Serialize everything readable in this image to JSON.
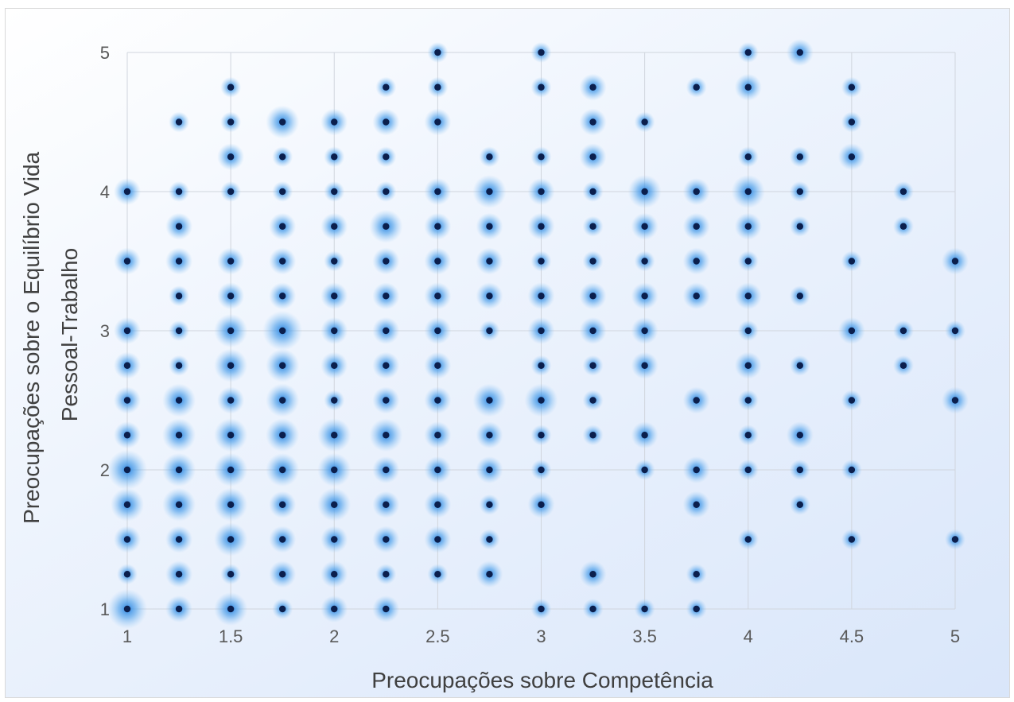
{
  "chart_data": {
    "type": "scatter",
    "title": "",
    "xlabel": "Preocupações sobre Competência",
    "ylabel": [
      "Preocupações sobre o Equilíbrio Vida",
      "Pessoal-Trabalho"
    ],
    "xlim": [
      1,
      5
    ],
    "ylim": [
      1,
      5
    ],
    "xticks": [
      "1",
      "1.5",
      "2",
      "2.5",
      "3",
      "3.5",
      "4",
      "4.5",
      "5"
    ],
    "yticks": [
      "1",
      "2",
      "3",
      "4",
      "5"
    ],
    "grid": true,
    "legend": "none",
    "marker_color": "#0b1f4d",
    "halo_color": "#4a9eea",
    "points": [
      [
        1,
        4,
        2
      ],
      [
        1,
        3.5,
        2
      ],
      [
        1,
        3,
        2
      ],
      [
        1,
        2.75,
        2
      ],
      [
        1,
        2.5,
        2
      ],
      [
        1,
        2.25,
        2
      ],
      [
        1,
        2,
        4
      ],
      [
        1,
        1.75,
        3
      ],
      [
        1,
        1.5,
        2
      ],
      [
        1,
        1.25,
        1
      ],
      [
        1,
        1,
        4
      ],
      [
        1.25,
        4.5,
        1
      ],
      [
        1.25,
        4,
        1
      ],
      [
        1.25,
        3.75,
        2
      ],
      [
        1.25,
        3.5,
        2
      ],
      [
        1.25,
        3.25,
        1
      ],
      [
        1.25,
        3,
        1
      ],
      [
        1.25,
        2.75,
        1
      ],
      [
        1.25,
        2.5,
        3
      ],
      [
        1.25,
        2.25,
        3
      ],
      [
        1.25,
        2,
        3
      ],
      [
        1.25,
        1.75,
        3
      ],
      [
        1.25,
        1.5,
        2
      ],
      [
        1.25,
        1.25,
        2
      ],
      [
        1.25,
        1,
        2
      ],
      [
        1.5,
        4.75,
        1
      ],
      [
        1.5,
        4.5,
        1
      ],
      [
        1.5,
        4.25,
        2
      ],
      [
        1.5,
        4,
        1
      ],
      [
        1.5,
        3.5,
        2
      ],
      [
        1.5,
        3.25,
        2
      ],
      [
        1.5,
        3,
        3
      ],
      [
        1.5,
        2.75,
        3
      ],
      [
        1.5,
        2.5,
        2
      ],
      [
        1.5,
        2.25,
        3
      ],
      [
        1.5,
        2,
        3
      ],
      [
        1.5,
        1.75,
        3
      ],
      [
        1.5,
        1.5,
        3
      ],
      [
        1.5,
        1.25,
        1
      ],
      [
        1.5,
        1,
        3
      ],
      [
        1.75,
        4.5,
        3
      ],
      [
        1.75,
        4.25,
        1
      ],
      [
        1.75,
        4,
        1
      ],
      [
        1.75,
        3.75,
        2
      ],
      [
        1.75,
        3.5,
        2
      ],
      [
        1.75,
        3.25,
        2
      ],
      [
        1.75,
        3,
        4
      ],
      [
        1.75,
        2.75,
        3
      ],
      [
        1.75,
        2.5,
        3
      ],
      [
        1.75,
        2.25,
        3
      ],
      [
        1.75,
        2,
        3
      ],
      [
        1.75,
        1.75,
        2
      ],
      [
        1.75,
        1.5,
        2
      ],
      [
        1.75,
        1.25,
        2
      ],
      [
        1.75,
        1,
        1
      ],
      [
        2,
        4.5,
        2
      ],
      [
        2,
        4.25,
        1
      ],
      [
        2,
        4,
        1
      ],
      [
        2,
        3.75,
        2
      ],
      [
        2,
        3.5,
        1
      ],
      [
        2,
        3.25,
        2
      ],
      [
        2,
        3,
        2
      ],
      [
        2,
        2.75,
        2
      ],
      [
        2,
        2.5,
        1
      ],
      [
        2,
        2.25,
        3
      ],
      [
        2,
        2,
        3
      ],
      [
        2,
        1.75,
        3
      ],
      [
        2,
        1.5,
        2
      ],
      [
        2,
        1.25,
        2
      ],
      [
        2,
        1,
        2
      ],
      [
        2.25,
        4.75,
        1
      ],
      [
        2.25,
        4.5,
        2
      ],
      [
        2.25,
        4.25,
        1
      ],
      [
        2.25,
        4,
        1
      ],
      [
        2.25,
        3.75,
        3
      ],
      [
        2.25,
        3.5,
        2
      ],
      [
        2.25,
        3.25,
        2
      ],
      [
        2.25,
        3,
        2
      ],
      [
        2.25,
        2.75,
        2
      ],
      [
        2.25,
        2.5,
        2
      ],
      [
        2.25,
        2.25,
        3
      ],
      [
        2.25,
        2,
        2
      ],
      [
        2.25,
        1.75,
        2
      ],
      [
        2.25,
        1.5,
        2
      ],
      [
        2.25,
        1.25,
        1
      ],
      [
        2.25,
        1,
        2
      ],
      [
        2.5,
        5,
        1
      ],
      [
        2.5,
        4.75,
        1
      ],
      [
        2.5,
        4.5,
        2
      ],
      [
        2.5,
        4,
        2
      ],
      [
        2.5,
        3.75,
        2
      ],
      [
        2.5,
        3.5,
        2
      ],
      [
        2.5,
        3.25,
        2
      ],
      [
        2.5,
        3,
        2
      ],
      [
        2.5,
        2.75,
        2
      ],
      [
        2.5,
        2.5,
        2
      ],
      [
        2.5,
        2.25,
        2
      ],
      [
        2.5,
        2,
        2
      ],
      [
        2.5,
        1.75,
        2
      ],
      [
        2.5,
        1.5,
        2
      ],
      [
        2.5,
        1.25,
        1
      ],
      [
        2.75,
        4.25,
        1
      ],
      [
        2.75,
        4,
        3
      ],
      [
        2.75,
        3.75,
        2
      ],
      [
        2.75,
        3.5,
        2
      ],
      [
        2.75,
        3.25,
        2
      ],
      [
        2.75,
        3,
        1
      ],
      [
        2.75,
        2.5,
        3
      ],
      [
        2.75,
        2.25,
        2
      ],
      [
        2.75,
        2,
        2
      ],
      [
        2.75,
        1.75,
        1
      ],
      [
        2.75,
        1.5,
        1
      ],
      [
        2.75,
        1.25,
        2
      ],
      [
        3,
        5,
        1
      ],
      [
        3,
        4.75,
        1
      ],
      [
        3,
        4.25,
        1
      ],
      [
        3,
        4,
        2
      ],
      [
        3,
        3.75,
        2
      ],
      [
        3,
        3.5,
        1
      ],
      [
        3,
        3.25,
        2
      ],
      [
        3,
        3,
        2
      ],
      [
        3,
        2.75,
        1
      ],
      [
        3,
        2.5,
        3
      ],
      [
        3,
        2.25,
        1
      ],
      [
        3,
        2,
        1
      ],
      [
        3,
        1.75,
        2
      ],
      [
        3,
        1,
        1
      ],
      [
        3.25,
        4.75,
        2
      ],
      [
        3.25,
        4.5,
        2
      ],
      [
        3.25,
        4.25,
        2
      ],
      [
        3.25,
        4,
        1
      ],
      [
        3.25,
        3.75,
        1
      ],
      [
        3.25,
        3.5,
        1
      ],
      [
        3.25,
        3.25,
        2
      ],
      [
        3.25,
        3,
        2
      ],
      [
        3.25,
        2.75,
        1
      ],
      [
        3.25,
        2.5,
        1
      ],
      [
        3.25,
        2.25,
        1
      ],
      [
        3.25,
        1.25,
        2
      ],
      [
        3.25,
        1,
        1
      ],
      [
        3.5,
        4.5,
        1
      ],
      [
        3.5,
        4,
        3
      ],
      [
        3.5,
        3.75,
        2
      ],
      [
        3.5,
        3.5,
        1
      ],
      [
        3.5,
        3.25,
        2
      ],
      [
        3.5,
        3,
        2
      ],
      [
        3.5,
        2.75,
        2
      ],
      [
        3.5,
        2.25,
        2
      ],
      [
        3.5,
        2,
        1
      ],
      [
        3.5,
        1,
        1
      ],
      [
        3.75,
        4.75,
        1
      ],
      [
        3.75,
        4,
        2
      ],
      [
        3.75,
        3.75,
        2
      ],
      [
        3.75,
        3.5,
        2
      ],
      [
        3.75,
        3.25,
        2
      ],
      [
        3.75,
        2.5,
        2
      ],
      [
        3.75,
        2,
        2
      ],
      [
        3.75,
        1.75,
        2
      ],
      [
        3.75,
        1.25,
        1
      ],
      [
        3.75,
        1,
        1
      ],
      [
        4,
        5,
        1
      ],
      [
        4,
        4.75,
        2
      ],
      [
        4,
        4.25,
        1
      ],
      [
        4,
        4,
        3
      ],
      [
        4,
        3.75,
        2
      ],
      [
        4,
        3.5,
        1
      ],
      [
        4,
        3.25,
        2
      ],
      [
        4,
        3,
        1
      ],
      [
        4,
        2.75,
        2
      ],
      [
        4,
        2.5,
        1
      ],
      [
        4,
        2.25,
        1
      ],
      [
        4,
        2,
        1
      ],
      [
        4,
        1.5,
        1
      ],
      [
        4.25,
        5,
        2
      ],
      [
        4.25,
        4.25,
        1
      ],
      [
        4.25,
        4,
        1
      ],
      [
        4.25,
        3.75,
        1
      ],
      [
        4.25,
        3.25,
        1
      ],
      [
        4.25,
        2.75,
        1
      ],
      [
        4.25,
        2.25,
        2
      ],
      [
        4.25,
        2,
        1
      ],
      [
        4.25,
        1.75,
        1
      ],
      [
        4.5,
        4.75,
        1
      ],
      [
        4.5,
        4.5,
        1
      ],
      [
        4.5,
        4.25,
        2
      ],
      [
        4.5,
        3.5,
        1
      ],
      [
        4.5,
        3,
        2
      ],
      [
        4.5,
        2.5,
        1
      ],
      [
        4.5,
        2,
        1
      ],
      [
        4.5,
        1.5,
        1
      ],
      [
        4.75,
        4,
        1
      ],
      [
        4.75,
        3.75,
        1
      ],
      [
        4.75,
        3,
        1
      ],
      [
        4.75,
        2.75,
        1
      ],
      [
        5,
        3.5,
        2
      ],
      [
        5,
        3,
        1
      ],
      [
        5,
        2.5,
        2
      ],
      [
        5,
        1.5,
        1
      ]
    ]
  }
}
